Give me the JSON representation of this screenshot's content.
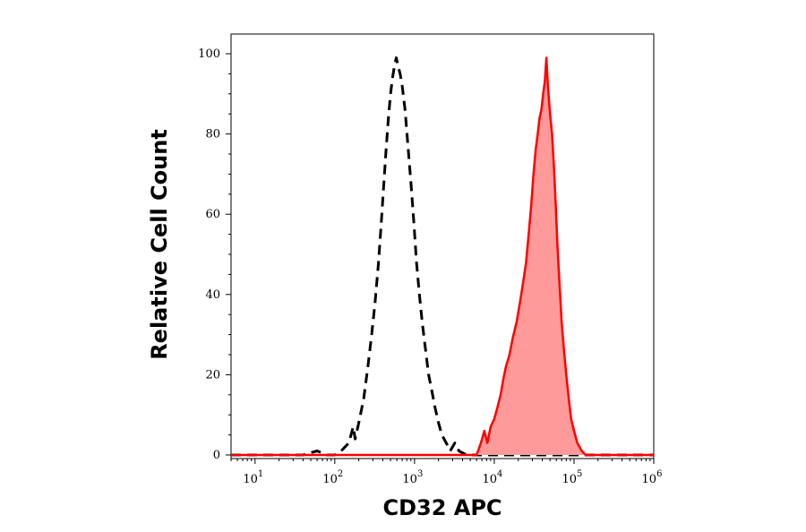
{
  "chart_data": {
    "type": "area",
    "title": "",
    "xlabel": "CD32 APC",
    "ylabel": "Relative Cell Count",
    "x_scale": "log",
    "xlim": [
      5,
      1000000
    ],
    "ylim": [
      0,
      105
    ],
    "grid": false,
    "legend": "none",
    "x_ticks": [
      {
        "base": "10",
        "exp": "1",
        "value": 10
      },
      {
        "base": "10",
        "exp": "2",
        "value": 100
      },
      {
        "base": "10",
        "exp": "3",
        "value": 1000
      },
      {
        "base": "10",
        "exp": "4",
        "value": 10000
      },
      {
        "base": "10",
        "exp": "5",
        "value": 100000
      },
      {
        "base": "10",
        "exp": "6",
        "value": 1000000
      }
    ],
    "y_ticks": [
      "0",
      "20",
      "40",
      "60",
      "80",
      "100"
    ],
    "series": [
      {
        "style": "dashed",
        "color": "#000000",
        "fill": "none",
        "points": [
          [
            5,
            0
          ],
          [
            40,
            0
          ],
          [
            60,
            1
          ],
          [
            80,
            0
          ],
          [
            100,
            0
          ],
          [
            120,
            1
          ],
          [
            150,
            3
          ],
          [
            170,
            7
          ],
          [
            180,
            4
          ],
          [
            200,
            8
          ],
          [
            230,
            14
          ],
          [
            260,
            22
          ],
          [
            290,
            30
          ],
          [
            320,
            38
          ],
          [
            350,
            47
          ],
          [
            380,
            57
          ],
          [
            410,
            67
          ],
          [
            440,
            76
          ],
          [
            470,
            84
          ],
          [
            500,
            90
          ],
          [
            530,
            94
          ],
          [
            560,
            97
          ],
          [
            590,
            99
          ],
          [
            620,
            97
          ],
          [
            660,
            95
          ],
          [
            700,
            92
          ],
          [
            760,
            86
          ],
          [
            820,
            78
          ],
          [
            900,
            68
          ],
          [
            980,
            58
          ],
          [
            1060,
            48
          ],
          [
            1150,
            40
          ],
          [
            1250,
            33
          ],
          [
            1380,
            26
          ],
          [
            1500,
            20
          ],
          [
            1650,
            16
          ],
          [
            1800,
            12
          ],
          [
            2000,
            8
          ],
          [
            2200,
            5
          ],
          [
            2500,
            3
          ],
          [
            2800,
            1
          ],
          [
            3200,
            3
          ],
          [
            3600,
            1
          ],
          [
            4500,
            0
          ],
          [
            1000000,
            0
          ]
        ]
      },
      {
        "style": "solid",
        "color": "#ff0000",
        "fill": "#ff9a9a",
        "points": [
          [
            5,
            0
          ],
          [
            6000,
            0
          ],
          [
            6800,
            3
          ],
          [
            7500,
            6
          ],
          [
            8200,
            3
          ],
          [
            9000,
            7
          ],
          [
            10000,
            9
          ],
          [
            11000,
            12
          ],
          [
            12000,
            15
          ],
          [
            13000,
            19
          ],
          [
            14000,
            22
          ],
          [
            15500,
            25
          ],
          [
            17000,
            29
          ],
          [
            19000,
            33
          ],
          [
            21000,
            38
          ],
          [
            23000,
            43
          ],
          [
            25000,
            48
          ],
          [
            27000,
            55
          ],
          [
            29000,
            62
          ],
          [
            31000,
            70
          ],
          [
            33000,
            76
          ],
          [
            35000,
            80
          ],
          [
            37000,
            84
          ],
          [
            39000,
            86
          ],
          [
            41000,
            90
          ],
          [
            43000,
            93
          ],
          [
            45000,
            99
          ],
          [
            47000,
            92
          ],
          [
            50000,
            85
          ],
          [
            53000,
            80
          ],
          [
            56000,
            72
          ],
          [
            59000,
            62
          ],
          [
            62000,
            52
          ],
          [
            66000,
            42
          ],
          [
            70000,
            33
          ],
          [
            75000,
            26
          ],
          [
            80000,
            20
          ],
          [
            86000,
            14
          ],
          [
            92000,
            9
          ],
          [
            100000,
            6
          ],
          [
            110000,
            3
          ],
          [
            125000,
            1
          ],
          [
            140000,
            0
          ],
          [
            1000000,
            0
          ]
        ]
      }
    ]
  }
}
